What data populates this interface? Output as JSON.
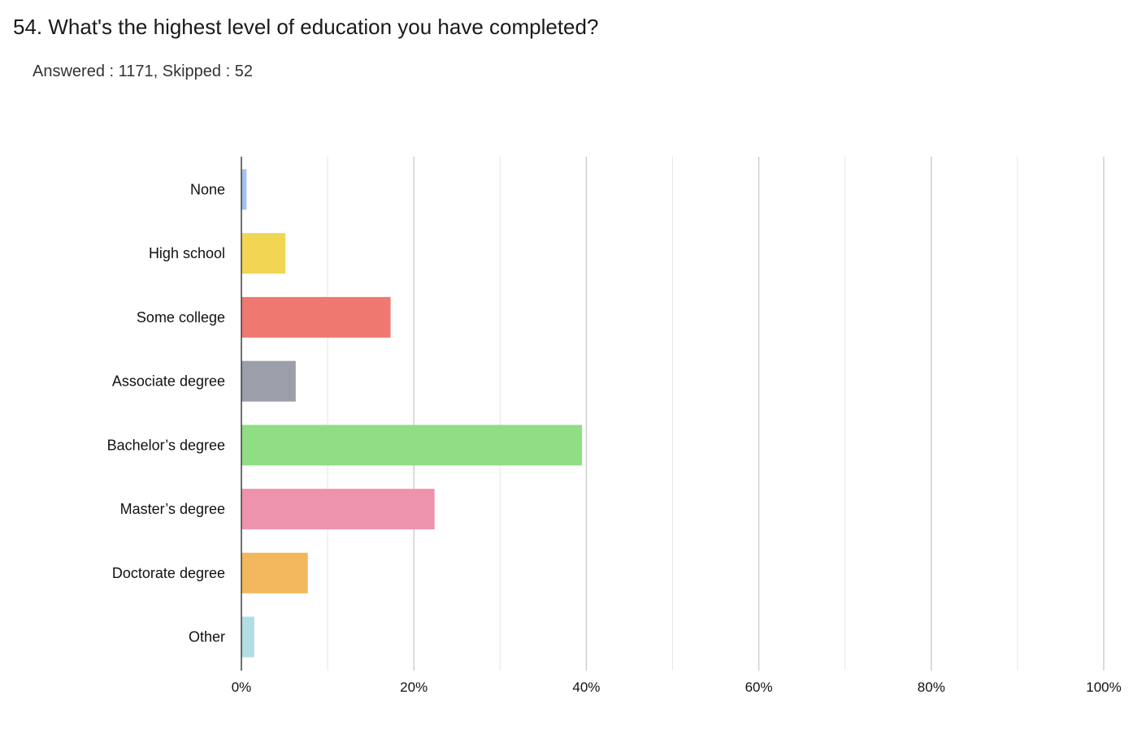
{
  "question": {
    "title": "54. What's the highest level of education you have completed?",
    "answered_label": "Answered :",
    "answered_value": "1171",
    "skipped_label": "Skipped :",
    "skipped_value": "52"
  },
  "chart_data": {
    "type": "bar",
    "orientation": "horizontal",
    "categories": [
      "None",
      "High school",
      "Some college",
      "Associate degree",
      "Bachelor’s degree",
      "Master’s degree",
      "Doctorate degree",
      "Other"
    ],
    "values": [
      0.6,
      5.1,
      17.3,
      6.3,
      39.5,
      22.4,
      7.7,
      1.5
    ],
    "colors": [
      "#a4c3ec",
      "#f2d552",
      "#ef7870",
      "#9c9ea9",
      "#90dd84",
      "#ee93ad",
      "#f3b75d",
      "#b2dde3"
    ],
    "xlim": [
      0,
      100
    ],
    "xticks": [
      0,
      20,
      40,
      60,
      80,
      100
    ],
    "xtick_labels": [
      "0%",
      "20%",
      "40%",
      "60%",
      "80%",
      "100%"
    ],
    "minor_gridlines": [
      10,
      30,
      50,
      70,
      90
    ],
    "grid": true,
    "title": "",
    "xlabel": "",
    "ylabel": ""
  }
}
